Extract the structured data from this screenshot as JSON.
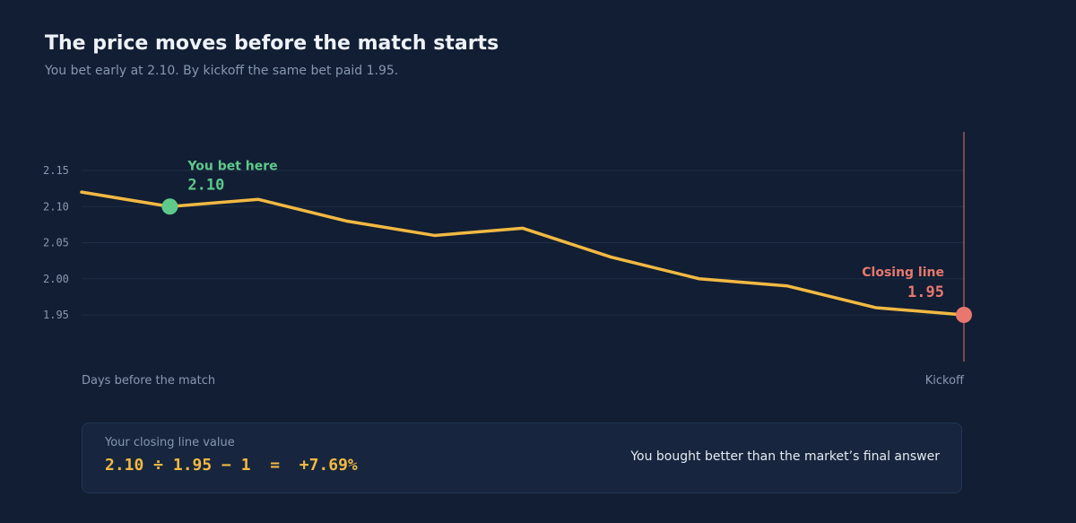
{
  "title": "The price moves before the match starts",
  "subtitle": "You bet early at 2.10. By kickoff the same bet paid 1.95.",
  "colors": {
    "background": "#111e33",
    "line": "#f2b942",
    "bet_marker": "#5ec98b",
    "closing_marker": "#e8786e",
    "grid": "#1f2d45"
  },
  "chart_data": {
    "type": "line",
    "series": [
      {
        "values": [
          2.12,
          2.1,
          2.11,
          2.08,
          2.06,
          2.07,
          2.03,
          2.0,
          1.99,
          1.96,
          1.95
        ]
      }
    ],
    "ylim": [
      1.925,
      2.175
    ],
    "yticks": [
      "2.15",
      "2.10",
      "2.05",
      "2.00",
      "1.95"
    ],
    "ytick_values": [
      2.15,
      2.1,
      2.05,
      2.0,
      1.95
    ],
    "xlabel_start": "Days before the match",
    "xlabel_end": "Kickoff",
    "grid": true,
    "annotations": {
      "bet": {
        "index": 1,
        "label": "You bet here",
        "value": "2.10"
      },
      "closing": {
        "index": 10,
        "label": "Closing line",
        "value": "1.95"
      }
    }
  },
  "clv": {
    "label": "Your closing line value",
    "formula": "2.10 ÷ 1.95 − 1  =  +7.69%",
    "verdict": "You bought better than the market’s final answer"
  }
}
